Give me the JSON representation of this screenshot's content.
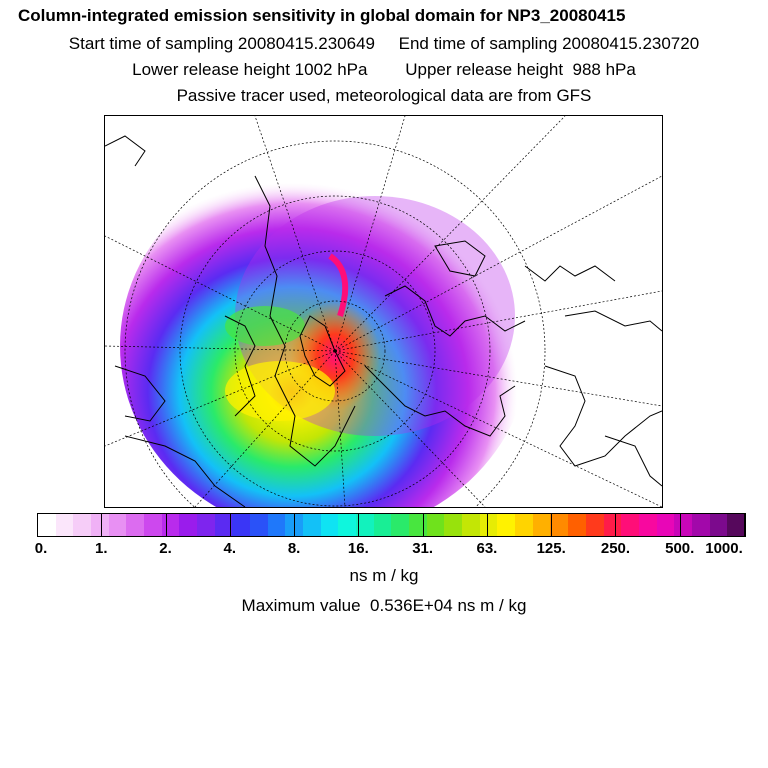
{
  "header": {
    "title": "Column-integrated emission sensitivity in global domain for NP3_20080415",
    "sampling_line": "Start time of sampling 20080415.230649     End time of sampling 20080415.230720",
    "release_line": "Lower release height 1002 hPa        Upper release height  988 hPa",
    "info_line": "Passive tracer used, meteorological data are from GFS"
  },
  "map": {
    "projection": "polar stereographic (north pole)",
    "features": [
      "coastlines",
      "latitude circles",
      "longitude meridians",
      "emission sensitivity field"
    ]
  },
  "colorbar": {
    "colors": [
      "#ffffff",
      "#fbe6fb",
      "#f6cdf8",
      "#f0b1f6",
      "#e890f3",
      "#dc6cf0",
      "#cd48ee",
      "#b92bec",
      "#9a1cec",
      "#7e25ee",
      "#5b2bf2",
      "#3a36f6",
      "#2a52f8",
      "#1f78fa",
      "#199df9",
      "#13c1f7",
      "#0fe3f3",
      "#0ff6dd",
      "#12f2bd",
      "#19ee95",
      "#2aea6a",
      "#48e63f",
      "#6fe21c",
      "#98e20c",
      "#c3e605",
      "#e6ec04",
      "#fff200",
      "#ffd400",
      "#ffb000",
      "#ff8a00",
      "#ff6000",
      "#ff3a1c",
      "#ff1c49",
      "#ff0e78",
      "#f8089f",
      "#e806b7",
      "#c806b8",
      "#a208aa",
      "#7c0a8d",
      "#56085c"
    ],
    "tick_labels": [
      "0.",
      "1.",
      "2.",
      "4.",
      "8.",
      "16.",
      "31.",
      "63.",
      "125.",
      "250.",
      "500.",
      "1000."
    ],
    "units": "ns m / kg"
  },
  "footer": {
    "max_value_text": "Maximum value  0.536E+04 ns m / kg"
  }
}
